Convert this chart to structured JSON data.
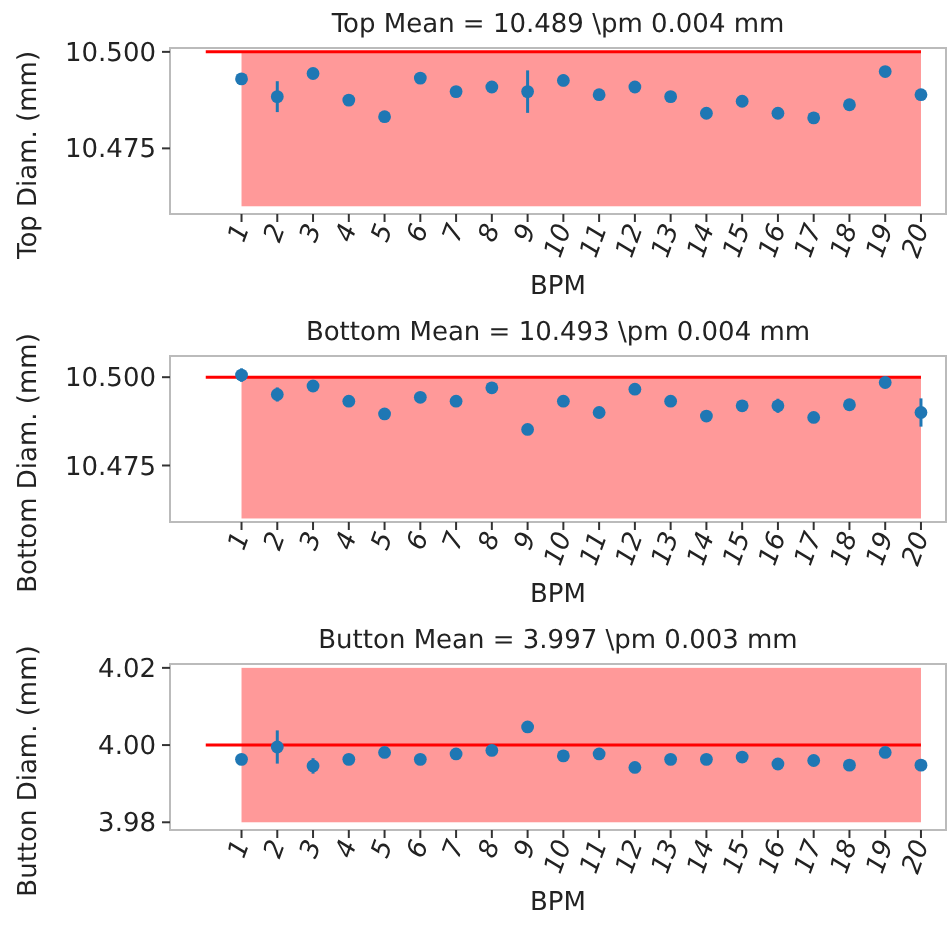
{
  "chart_data": [
    {
      "type": "scatter",
      "title": "Top Mean = 10.489 \\pm 0.004 mm",
      "xlabel": "BPM",
      "ylabel": "Top Diam. (mm)",
      "categories": [
        "1",
        "2",
        "3",
        "4",
        "5",
        "6",
        "7",
        "8",
        "9",
        "10",
        "11",
        "12",
        "13",
        "14",
        "15",
        "16",
        "17",
        "18",
        "19",
        "20"
      ],
      "series": [
        {
          "color": "#1f77b4",
          "values": [
            10.493,
            10.4884,
            10.4944,
            10.4875,
            10.4832,
            10.4932,
            10.4897,
            10.4909,
            10.4897,
            10.4926,
            10.4889,
            10.4909,
            10.4884,
            10.4841,
            10.4872,
            10.4841,
            10.4829,
            10.4863,
            10.4949,
            10.4889
          ],
          "errors": [
            null,
            0.004,
            null,
            null,
            null,
            null,
            null,
            null,
            0.0055,
            0.0015,
            null,
            null,
            null,
            null,
            null,
            null,
            null,
            null,
            null,
            null
          ]
        }
      ],
      "marker": "circle",
      "ylim": [
        10.458,
        10.501
      ],
      "yticks": [
        10.475,
        {
          "value": 10.5,
          "label": "10.500"
        }
      ],
      "ref_lines": [
        {
          "axis": "y",
          "value": 10.5,
          "color": "#ff0000"
        }
      ],
      "bands": [
        {
          "axis": "y",
          "from": 10.46,
          "to": 10.5,
          "color": "#ff9999"
        }
      ]
    },
    {
      "type": "scatter",
      "title": "Bottom Mean = 10.493 \\pm 0.004 mm",
      "xlabel": "BPM",
      "ylabel": "Bottom Diam. (mm)",
      "categories": [
        "1",
        "2",
        "3",
        "4",
        "5",
        "6",
        "7",
        "8",
        "9",
        "10",
        "11",
        "12",
        "13",
        "14",
        "15",
        "16",
        "17",
        "18",
        "19",
        "20"
      ],
      "series": [
        {
          "color": "#1f77b4",
          "values": [
            10.5006,
            10.4951,
            10.4975,
            10.4932,
            10.4896,
            10.4943,
            10.4932,
            10.497,
            10.4852,
            10.4932,
            10.49,
            10.4966,
            10.4932,
            10.489,
            10.4919,
            10.4919,
            10.4886,
            10.4922,
            10.4985,
            10.49
          ],
          "errors": [
            0.0019,
            0.002,
            0.001,
            null,
            null,
            null,
            null,
            null,
            null,
            null,
            null,
            null,
            null,
            null,
            0.0015,
            0.002,
            null,
            null,
            null,
            0.004
          ]
        }
      ],
      "marker": "circle",
      "ylim": [
        10.459,
        10.506
      ],
      "yticks": [
        10.475,
        {
          "value": 10.5,
          "label": "10.500"
        }
      ],
      "ref_lines": [
        {
          "axis": "y",
          "value": 10.5,
          "color": "#ff0000"
        }
      ],
      "bands": [
        {
          "axis": "y",
          "from": 10.46,
          "to": 10.5,
          "color": "#ff9999"
        }
      ]
    },
    {
      "type": "scatter",
      "title": "Button Mean = 3.997 \\pm 0.003 mm",
      "xlabel": "BPM",
      "ylabel": "Button Diam. (mm)",
      "categories": [
        "1",
        "2",
        "3",
        "4",
        "5",
        "6",
        "7",
        "8",
        "9",
        "10",
        "11",
        "12",
        "13",
        "14",
        "15",
        "16",
        "17",
        "18",
        "19",
        "20"
      ],
      "series": [
        {
          "color": "#1f77b4",
          "values": [
            3.9963,
            3.9995,
            3.9946,
            3.9963,
            3.9981,
            3.9963,
            3.9977,
            3.9986,
            4.0047,
            3.9972,
            3.9977,
            3.9942,
            3.9963,
            3.9963,
            3.9969,
            3.9951,
            3.996,
            3.9948,
            3.9981,
            3.9948
          ],
          "errors": [
            null,
            0.0043,
            0.002,
            null,
            null,
            null,
            null,
            null,
            null,
            null,
            null,
            null,
            null,
            null,
            null,
            null,
            null,
            null,
            null,
            null
          ]
        }
      ],
      "marker": "circle",
      "ylim": [
        3.978,
        4.021
      ],
      "yticks": [
        {
          "value": 3.98,
          "label": "3.98"
        },
        {
          "value": 4,
          "label": "4.00"
        },
        {
          "value": 4.02,
          "label": "4.02"
        }
      ],
      "ref_lines": [
        {
          "axis": "y",
          "value": 4,
          "color": "#ff0000"
        }
      ],
      "bands": [
        {
          "axis": "y",
          "from": 3.98,
          "to": 4.02,
          "color": "#ff9999"
        }
      ]
    }
  ]
}
